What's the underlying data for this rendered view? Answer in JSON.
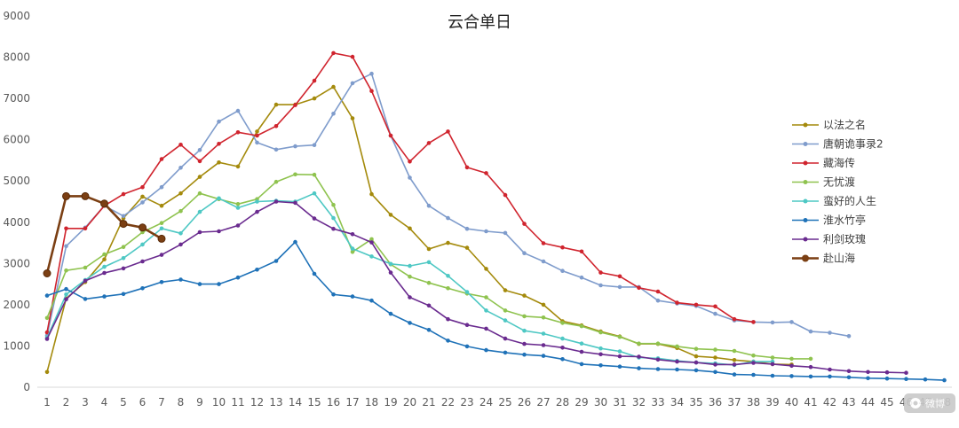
{
  "chart_data": {
    "type": "line",
    "title": "云合单日",
    "xlabel": "",
    "ylabel": "",
    "ylim": [
      0,
      9000
    ],
    "y_ticks": [
      0,
      1000,
      2000,
      3000,
      4000,
      5000,
      6000,
      7000,
      8000,
      9000
    ],
    "x_ticks": [
      1,
      2,
      3,
      4,
      5,
      6,
      7,
      8,
      9,
      10,
      11,
      12,
      13,
      14,
      15,
      16,
      17,
      18,
      19,
      20,
      21,
      22,
      23,
      24,
      25,
      26,
      27,
      28,
      29,
      30,
      31,
      32,
      33,
      34,
      35,
      36,
      37,
      38,
      39,
      40,
      41,
      42,
      43,
      44,
      45,
      46,
      47,
      48
    ],
    "grid": false,
    "legend_position": "right",
    "series": [
      {
        "name": "以法之名",
        "color": "#a48a0c",
        "x": [
          1,
          2,
          3,
          4,
          5,
          6,
          7,
          8,
          9,
          10,
          11,
          12,
          13,
          14,
          15,
          16,
          17,
          18,
          19,
          20,
          21,
          22,
          23,
          24,
          25,
          26,
          27,
          28,
          29,
          30,
          31,
          32,
          33,
          34,
          35,
          36,
          37,
          38,
          39,
          40,
          41
        ],
        "values": [
          370,
          2150,
          2550,
          3100,
          4100,
          4620,
          4400,
          4700,
          5100,
          5450,
          5350,
          6200,
          6850,
          6850,
          7000,
          7280,
          6520,
          4680,
          4180,
          3850,
          3350,
          3500,
          3380,
          2870,
          2350,
          2220,
          2000,
          1600,
          1500,
          1350,
          1230,
          1050,
          1050,
          950,
          750,
          720,
          660,
          620,
          560,
          550,
          null
        ]
      },
      {
        "name": "唐朝诡事录2",
        "color": "#7f9ccc",
        "x": [
          1,
          2,
          3,
          4,
          5,
          6,
          7,
          8,
          9,
          10,
          11,
          12,
          13,
          14,
          15,
          16,
          17,
          18,
          19,
          20,
          21,
          22,
          23,
          24,
          25,
          26,
          27,
          28,
          29,
          30,
          31,
          32,
          33,
          34,
          35,
          36,
          37,
          38,
          39,
          40,
          41,
          42,
          43,
          44,
          45,
          46,
          47,
          48
        ],
        "values": [
          1250,
          3420,
          3870,
          4400,
          4150,
          4480,
          4850,
          5320,
          5750,
          6440,
          6700,
          5930,
          5760,
          5840,
          5870,
          6630,
          7370,
          7600,
          6100,
          5080,
          4400,
          4100,
          3840,
          3780,
          3740,
          3250,
          3050,
          2820,
          2660,
          2470,
          2430,
          2430,
          2100,
          2030,
          1970,
          1780,
          1620,
          1580,
          1570,
          1580,
          1350,
          1320,
          1240,
          null,
          null,
          null,
          null,
          null
        ]
      },
      {
        "name": "藏海传",
        "color": "#d0242e",
        "x": [
          1,
          2,
          3,
          4,
          5,
          6,
          7,
          8,
          9,
          10,
          11,
          12,
          13,
          14,
          15,
          16,
          17,
          18,
          19,
          20,
          21,
          22,
          23,
          24,
          25,
          26,
          27,
          28,
          29,
          30,
          31,
          32,
          33,
          34,
          35,
          36,
          37,
          38
        ],
        "values": [
          1330,
          3850,
          3850,
          4400,
          4680,
          4850,
          5530,
          5880,
          5480,
          5900,
          6180,
          6100,
          6330,
          6840,
          7430,
          8100,
          8010,
          7180,
          6100,
          5470,
          5920,
          6200,
          5330,
          5190,
          4660,
          3960,
          3490,
          3390,
          3290,
          2780,
          2690,
          2410,
          2320,
          2050,
          2000,
          1960,
          1650,
          1580
        ]
      },
      {
        "name": "无忧渡",
        "color": "#8fc34f",
        "x": [
          1,
          2,
          3,
          4,
          5,
          6,
          7,
          8,
          9,
          10,
          11,
          12,
          13,
          14,
          15,
          16,
          17,
          18,
          19,
          20,
          21,
          22,
          23,
          24,
          25,
          26,
          27,
          28,
          29,
          30,
          31,
          32,
          33,
          34,
          35,
          36,
          37,
          38,
          39,
          40,
          41
        ],
        "values": [
          1680,
          2830,
          2900,
          3220,
          3400,
          3760,
          3980,
          4270,
          4700,
          4560,
          4440,
          4560,
          4980,
          5160,
          5150,
          4420,
          3280,
          3590,
          2980,
          2680,
          2530,
          2400,
          2270,
          2180,
          1860,
          1720,
          1690,
          1560,
          1480,
          1330,
          1220,
          1060,
          1060,
          990,
          930,
          910,
          880,
          770,
          720,
          690,
          690
        ]
      },
      {
        "name": "蛮好的人生",
        "color": "#4ec8c4",
        "x": [
          1,
          2,
          3,
          4,
          5,
          6,
          7,
          8,
          9,
          10,
          11,
          12,
          13,
          14,
          15,
          16,
          17,
          18,
          19,
          20,
          21,
          22,
          23,
          24,
          25,
          26,
          27,
          28,
          29,
          30,
          31,
          32,
          33,
          34,
          35,
          36,
          37,
          38,
          39
        ],
        "values": [
          1200,
          2250,
          2600,
          2920,
          3130,
          3460,
          3850,
          3730,
          4250,
          4580,
          4350,
          4500,
          4520,
          4500,
          4700,
          4100,
          3360,
          3170,
          2990,
          2940,
          3030,
          2700,
          2310,
          1860,
          1620,
          1370,
          1300,
          1180,
          1060,
          940,
          870,
          720,
          700,
          640,
          600,
          580,
          540,
          620,
          620
        ]
      },
      {
        "name": "淮水竹亭",
        "color": "#1f72b8",
        "x": [
          1,
          2,
          3,
          4,
          5,
          6,
          7,
          8,
          9,
          10,
          11,
          12,
          13,
          14,
          15,
          16,
          17,
          18,
          19,
          20,
          21,
          22,
          23,
          24,
          25,
          26,
          27,
          28,
          29,
          30,
          31,
          32,
          33,
          34,
          35,
          36,
          37,
          38,
          39,
          40,
          41,
          42,
          43,
          44,
          45,
          46,
          47,
          48
        ],
        "values": [
          2220,
          2380,
          2140,
          2200,
          2260,
          2400,
          2550,
          2610,
          2500,
          2500,
          2660,
          2850,
          3060,
          3520,
          2750,
          2250,
          2200,
          2100,
          1780,
          1560,
          1390,
          1130,
          990,
          900,
          840,
          790,
          760,
          680,
          560,
          530,
          500,
          460,
          440,
          430,
          410,
          370,
          310,
          300,
          280,
          270,
          260,
          260,
          240,
          220,
          210,
          200,
          190,
          170
        ]
      },
      {
        "name": "利剑玫瑰",
        "color": "#6a2b8f",
        "x": [
          1,
          2,
          3,
          4,
          5,
          6,
          7,
          8,
          9,
          10,
          11,
          12,
          13,
          14,
          15,
          16,
          17,
          18,
          19,
          20,
          21,
          22,
          23,
          24,
          25,
          26,
          27,
          28,
          29,
          30,
          31,
          32,
          33,
          34,
          35,
          36,
          37,
          38,
          39,
          40,
          41,
          42,
          43,
          44,
          45,
          46
        ],
        "values": [
          1170,
          2130,
          2580,
          2770,
          2880,
          3050,
          3210,
          3460,
          3760,
          3780,
          3920,
          4250,
          4500,
          4470,
          4090,
          3840,
          3710,
          3510,
          2780,
          2180,
          1980,
          1650,
          1510,
          1420,
          1180,
          1050,
          1020,
          960,
          860,
          800,
          750,
          740,
          670,
          620,
          600,
          550,
          550,
          590,
          560,
          520,
          490,
          430,
          390,
          370,
          360,
          350
        ]
      },
      {
        "name": "赴山海",
        "color": "#7b3f13",
        "x": [
          1,
          2,
          3,
          4,
          5,
          6,
          7
        ],
        "values": [
          2760,
          4630,
          4630,
          4450,
          3960,
          3870,
          3600
        ]
      }
    ]
  },
  "watermark": {
    "icon": "weibo-icon",
    "text": "微博"
  },
  "colors": {
    "axis": "#d9d9d9",
    "background": "#ffffff"
  }
}
